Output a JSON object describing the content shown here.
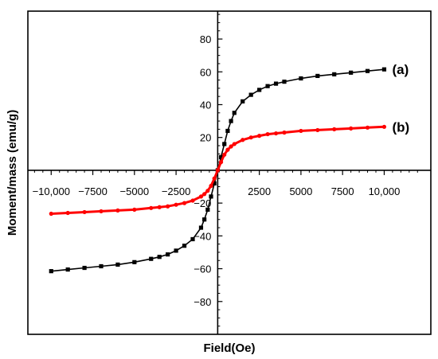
{
  "chart_data": {
    "type": "scatter",
    "xlabel": "Field(Oe)",
    "ylabel": "Moment/mass (emu/g)",
    "xlim": [
      -11400,
      12800
    ],
    "ylim": [
      -100,
      97
    ],
    "x_ticks": [
      -10000,
      -7500,
      -5000,
      -2500,
      2500,
      5000,
      7500,
      10000
    ],
    "x_tick_labels": [
      "−10,000",
      "−7500",
      "−5000",
      "−2500",
      "2500",
      "5000",
      "7500",
      "10,000"
    ],
    "y_ticks": [
      -80,
      -60,
      -40,
      -20,
      20,
      40,
      60,
      80
    ],
    "y_tick_labels": [
      "−80",
      "−60",
      "−40",
      "−20",
      "20",
      "40",
      "60",
      "80"
    ],
    "grid": false,
    "series": [
      {
        "name": "(a)",
        "color": "#000000",
        "marker": "square",
        "x": [
          -10000,
          -9000,
          -8000,
          -7000,
          -6000,
          -5000,
          -4000,
          -3500,
          -3000,
          -2500,
          -2000,
          -1500,
          -1000,
          -800,
          -600,
          -400,
          -200,
          0,
          200,
          400,
          600,
          800,
          1000,
          1500,
          2000,
          2500,
          3000,
          3500,
          4000,
          5000,
          6000,
          7000,
          8000,
          9000,
          10000
        ],
        "y": [
          -61.5,
          -60.5,
          -59.5,
          -58.5,
          -57.5,
          -56,
          -54,
          -52.8,
          -51.3,
          -49,
          -46,
          -42,
          -35,
          -30,
          -24,
          -16,
          -8,
          0,
          8,
          16,
          24,
          30,
          35,
          42,
          46,
          49,
          51.3,
          52.8,
          54,
          56,
          57.5,
          58.5,
          59.5,
          60.5,
          61.5
        ]
      },
      {
        "name": "(b)",
        "color": "#ff0000",
        "marker": "circle",
        "x": [
          -10000,
          -9000,
          -8000,
          -7000,
          -6000,
          -5000,
          -4000,
          -3500,
          -3000,
          -2500,
          -2000,
          -1500,
          -1000,
          -800,
          -600,
          -400,
          -200,
          0,
          200,
          400,
          600,
          800,
          1000,
          1500,
          2000,
          2500,
          3000,
          3500,
          4000,
          5000,
          6000,
          7000,
          8000,
          9000,
          10000
        ],
        "y": [
          -26.5,
          -26,
          -25.5,
          -25,
          -24.5,
          -24,
          -23,
          -22.5,
          -22,
          -21,
          -20,
          -18.5,
          -16,
          -14.5,
          -12.5,
          -9.5,
          -5,
          0,
          5,
          9.5,
          12.5,
          14.5,
          16,
          18.5,
          20,
          21,
          22,
          22.5,
          23,
          24,
          24.5,
          25,
          25.5,
          26,
          26.5
        ]
      }
    ]
  }
}
